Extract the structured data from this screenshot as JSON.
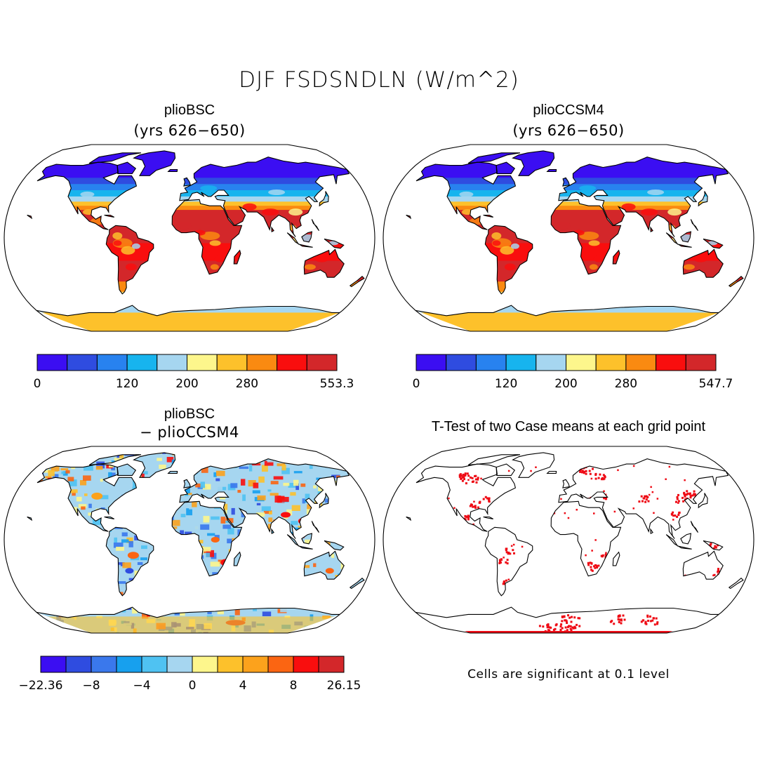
{
  "title": "DJF FSDSNDLN (W/m^2)",
  "panels": [
    {
      "id": "p1",
      "title": "plioBSC",
      "subtitle": "(yrs 626−650)",
      "colorbar_labels": [
        "0",
        "120",
        "200",
        "280",
        "553.3"
      ],
      "kind": "field"
    },
    {
      "id": "p2",
      "title": "plioCCSM4",
      "subtitle": "(yrs 626−650)",
      "colorbar_labels": [
        "0",
        "120",
        "200",
        "280",
        "547.7"
      ],
      "kind": "field"
    },
    {
      "id": "p3",
      "title": "plioBSC",
      "subtitle": "− plioCCSM4",
      "colorbar_labels": [
        "−22.36",
        "−8",
        "−4",
        "0",
        "4",
        "8",
        "26.15"
      ],
      "kind": "difference"
    },
    {
      "id": "p4",
      "title": "T-Test of two Case means at each grid point",
      "note": "Cells are significant at 0.1 level",
      "kind": "ttest"
    }
  ],
  "colors": {
    "field_scale": [
      "#3b0ef2",
      "#2f4ce0",
      "#2882ef",
      "#17b4ee",
      "#a6d6f0",
      "#fdf68c",
      "#fdc12b",
      "#fa8a11",
      "#f90e0e",
      "#d3272a"
    ],
    "diff_scale": [
      "#3b0ef2",
      "#2f4ce0",
      "#3a78ec",
      "#17a0ee",
      "#4fc2f2",
      "#a6d6f0",
      "#fdf68c",
      "#fdc12b",
      "#fca21c",
      "#fb6512",
      "#f90e0e",
      "#d3272a"
    ],
    "significance": "#ee0b15"
  }
}
